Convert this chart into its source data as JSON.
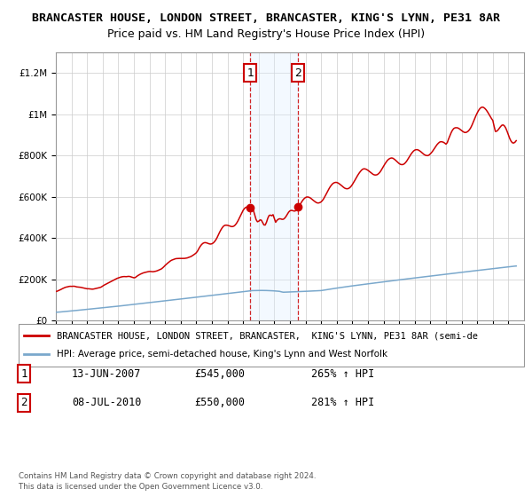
{
  "title1": "BRANCASTER HOUSE, LONDON STREET, BRANCASTER, KING'S LYNN, PE31 8AR",
  "title2": "Price paid vs. HM Land Registry's House Price Index (HPI)",
  "ylim": [
    0,
    1300000
  ],
  "yticks": [
    0,
    200000,
    400000,
    600000,
    800000,
    1000000,
    1200000
  ],
  "ytick_labels": [
    "£0",
    "£200K",
    "£400K",
    "£600K",
    "£800K",
    "£1M",
    "£1.2M"
  ],
  "xlim": [
    1995,
    2025
  ],
  "sale1_date": 2007.45,
  "sale1_price": 545000,
  "sale1_label": "1",
  "sale1_display": "13-JUN-2007",
  "sale1_price_str": "£545,000",
  "sale1_pct": "265% ↑ HPI",
  "sale2_date": 2010.52,
  "sale2_price": 550000,
  "sale2_label": "2",
  "sale2_display": "08-JUL-2010",
  "sale2_price_str": "£550,000",
  "sale2_pct": "281% ↑ HPI",
  "red_color": "#cc0000",
  "blue_color": "#7aa8cc",
  "shade_color": "#ddeeff",
  "vline_color": "#cc0000",
  "background_color": "#ffffff",
  "grid_color": "#cccccc",
  "legend_line1": "BRANCASTER HOUSE, LONDON STREET, BRANCASTER,  KING'S LYNN, PE31 8AR (semi-de",
  "legend_line2": "HPI: Average price, semi-detached house, King's Lynn and West Norfolk",
  "footnote1": "Contains HM Land Registry data © Crown copyright and database right 2024.",
  "footnote2": "This data is licensed under the Open Government Licence v3.0.",
  "title1_fontsize": 9.5,
  "title2_fontsize": 9,
  "tick_fontsize": 7.5
}
